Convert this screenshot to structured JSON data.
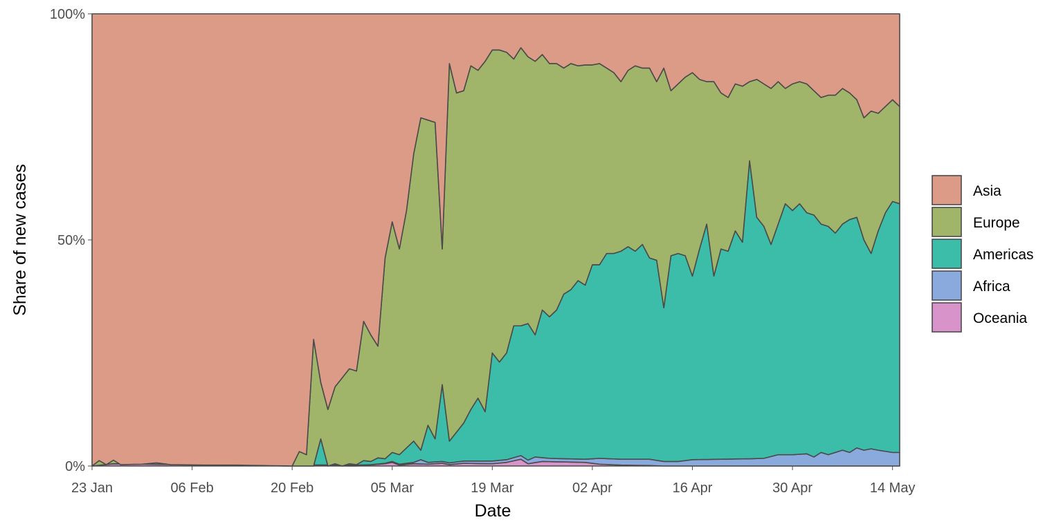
{
  "chart_data": {
    "type": "area",
    "stacked": true,
    "normalized": true,
    "xlabel": "Date",
    "ylabel": "Share of new cases",
    "x_start": "2020-01-23",
    "x_end": "2020-05-15",
    "x_ticks": [
      {
        "date": "2020-01-23",
        "label": "23 Jan"
      },
      {
        "date": "2020-02-06",
        "label": "06 Feb"
      },
      {
        "date": "2020-02-20",
        "label": "20 Feb"
      },
      {
        "date": "2020-03-05",
        "label": "05 Mar"
      },
      {
        "date": "2020-03-19",
        "label": "19 Mar"
      },
      {
        "date": "2020-04-02",
        "label": "02 Apr"
      },
      {
        "date": "2020-04-16",
        "label": "16 Apr"
      },
      {
        "date": "2020-04-30",
        "label": "30 Apr"
      },
      {
        "date": "2020-05-14",
        "label": "14 May"
      }
    ],
    "y_ticks": [
      {
        "value": 0,
        "label": "0%"
      },
      {
        "value": 0.5,
        "label": "50%"
      },
      {
        "value": 1,
        "label": "100%"
      }
    ],
    "ylim": [
      0,
      1
    ],
    "grid": true,
    "legend_position": "right",
    "legend_order": [
      "Asia",
      "Europe",
      "Americas",
      "Africa",
      "Oceania"
    ],
    "stack_order_bottom_to_top": [
      "Oceania",
      "Africa",
      "Americas",
      "Europe",
      "Asia"
    ],
    "colors": {
      "Asia": "#db9b86",
      "Europe": "#a0b46a",
      "Americas": "#3cbdaa",
      "Africa": "#8aa9dc",
      "Oceania": "#d893cb"
    },
    "cumulative_top_boundaries": {
      "Oceania": [
        [
          "2020-01-23",
          0
        ],
        [
          "2020-01-26",
          0.005
        ],
        [
          "2020-02-29",
          0
        ],
        [
          "2020-03-04",
          0.005
        ],
        [
          "2020-03-05",
          0.008
        ],
        [
          "2020-03-06",
          0.002
        ],
        [
          "2020-03-08",
          0.005
        ],
        [
          "2020-03-10",
          0.004
        ],
        [
          "2020-03-12",
          0.006
        ],
        [
          "2020-03-13",
          0.003
        ],
        [
          "2020-03-15",
          0.006
        ],
        [
          "2020-03-19",
          0.005
        ],
        [
          "2020-03-21",
          0.008
        ],
        [
          "2020-03-23",
          0.015
        ],
        [
          "2020-03-24",
          0.005
        ],
        [
          "2020-03-26",
          0.01
        ],
        [
          "2020-04-01",
          0.008
        ],
        [
          "2020-04-03",
          0.004
        ],
        [
          "2020-04-06",
          0.002
        ],
        [
          "2020-04-10",
          0.001
        ],
        [
          "2020-04-12",
          0
        ],
        [
          "2020-05-15",
          0
        ]
      ],
      "Africa": [
        [
          "2020-01-23",
          0
        ],
        [
          "2020-01-26",
          0.005
        ],
        [
          "2020-02-29",
          0.002
        ],
        [
          "2020-03-02",
          0.003
        ],
        [
          "2020-03-04",
          0.006
        ],
        [
          "2020-03-05",
          0.01
        ],
        [
          "2020-03-06",
          0.004
        ],
        [
          "2020-03-08",
          0.008
        ],
        [
          "2020-03-09",
          0.014
        ],
        [
          "2020-03-10",
          0.008
        ],
        [
          "2020-03-12",
          0.01
        ],
        [
          "2020-03-13",
          0.007
        ],
        [
          "2020-03-15",
          0.011
        ],
        [
          "2020-03-19",
          0.011
        ],
        [
          "2020-03-21",
          0.014
        ],
        [
          "2020-03-23",
          0.023
        ],
        [
          "2020-03-24",
          0.013
        ],
        [
          "2020-03-25",
          0.02
        ],
        [
          "2020-03-27",
          0.017
        ],
        [
          "2020-04-01",
          0.015
        ],
        [
          "2020-04-03",
          0.017
        ],
        [
          "2020-04-06",
          0.015
        ],
        [
          "2020-04-10",
          0.015
        ],
        [
          "2020-04-12",
          0.01
        ],
        [
          "2020-04-14",
          0.01
        ],
        [
          "2020-04-16",
          0.014
        ],
        [
          "2020-04-20",
          0.015
        ],
        [
          "2020-04-24",
          0.016
        ],
        [
          "2020-04-26",
          0.017
        ],
        [
          "2020-04-28",
          0.025
        ],
        [
          "2020-04-30",
          0.025
        ],
        [
          "2020-05-02",
          0.027
        ],
        [
          "2020-05-03",
          0.02
        ],
        [
          "2020-05-04",
          0.03
        ],
        [
          "2020-05-05",
          0.025
        ],
        [
          "2020-05-07",
          0.035
        ],
        [
          "2020-05-08",
          0.03
        ],
        [
          "2020-05-09",
          0.04
        ],
        [
          "2020-05-10",
          0.035
        ],
        [
          "2020-05-11",
          0.038
        ],
        [
          "2020-05-12",
          0.035
        ],
        [
          "2020-05-14",
          0.03
        ],
        [
          "2020-05-15",
          0.03
        ]
      ],
      "Americas": [
        [
          "2020-01-23",
          0
        ],
        [
          "2020-01-26",
          0.005
        ],
        [
          "2020-02-20",
          0
        ],
        [
          "2020-02-23",
          0
        ],
        [
          "2020-02-24",
          0.06
        ],
        [
          "2020-02-25",
          0
        ],
        [
          "2020-02-26",
          0.005
        ],
        [
          "2020-02-27",
          0
        ],
        [
          "2020-02-28",
          0.005
        ],
        [
          "2020-02-29",
          0.003
        ],
        [
          "2020-03-01",
          0.012
        ],
        [
          "2020-03-02",
          0.01
        ],
        [
          "2020-03-03",
          0.018
        ],
        [
          "2020-03-04",
          0.016
        ],
        [
          "2020-03-05",
          0.03
        ],
        [
          "2020-03-06",
          0.025
        ],
        [
          "2020-03-08",
          0.055
        ],
        [
          "2020-03-09",
          0.035
        ],
        [
          "2020-03-10",
          0.09
        ],
        [
          "2020-03-11",
          0.06
        ],
        [
          "2020-03-12",
          0.18
        ],
        [
          "2020-03-13",
          0.055
        ],
        [
          "2020-03-14",
          0.075
        ],
        [
          "2020-03-15",
          0.095
        ],
        [
          "2020-03-16",
          0.125
        ],
        [
          "2020-03-17",
          0.15
        ],
        [
          "2020-03-18",
          0.12
        ],
        [
          "2020-03-19",
          0.25
        ],
        [
          "2020-03-20",
          0.23
        ],
        [
          "2020-03-21",
          0.25
        ],
        [
          "2020-03-22",
          0.31
        ],
        [
          "2020-03-23",
          0.31
        ],
        [
          "2020-03-24",
          0.315
        ],
        [
          "2020-03-25",
          0.29
        ],
        [
          "2020-03-26",
          0.345
        ],
        [
          "2020-03-27",
          0.33
        ],
        [
          "2020-03-28",
          0.345
        ],
        [
          "2020-03-29",
          0.38
        ],
        [
          "2020-03-30",
          0.39
        ],
        [
          "2020-03-31",
          0.41
        ],
        [
          "2020-04-01",
          0.4
        ],
        [
          "2020-04-02",
          0.445
        ],
        [
          "2020-04-03",
          0.445
        ],
        [
          "2020-04-04",
          0.47
        ],
        [
          "2020-04-05",
          0.47
        ],
        [
          "2020-04-06",
          0.475
        ],
        [
          "2020-04-07",
          0.485
        ],
        [
          "2020-04-08",
          0.475
        ],
        [
          "2020-04-09",
          0.49
        ],
        [
          "2020-04-10",
          0.46
        ],
        [
          "2020-04-11",
          0.455
        ],
        [
          "2020-04-12",
          0.35
        ],
        [
          "2020-04-13",
          0.465
        ],
        [
          "2020-04-14",
          0.47
        ],
        [
          "2020-04-15",
          0.465
        ],
        [
          "2020-04-16",
          0.42
        ],
        [
          "2020-04-17",
          0.48
        ],
        [
          "2020-04-18",
          0.535
        ],
        [
          "2020-04-19",
          0.42
        ],
        [
          "2020-04-20",
          0.48
        ],
        [
          "2020-04-21",
          0.475
        ],
        [
          "2020-04-22",
          0.52
        ],
        [
          "2020-04-23",
          0.495
        ],
        [
          "2020-04-24",
          0.675
        ],
        [
          "2020-04-25",
          0.55
        ],
        [
          "2020-04-26",
          0.53
        ],
        [
          "2020-04-27",
          0.49
        ],
        [
          "2020-04-28",
          0.535
        ],
        [
          "2020-04-29",
          0.58
        ],
        [
          "2020-04-30",
          0.565
        ],
        [
          "2020-05-01",
          0.58
        ],
        [
          "2020-05-02",
          0.56
        ],
        [
          "2020-05-03",
          0.555
        ],
        [
          "2020-05-04",
          0.535
        ],
        [
          "2020-05-05",
          0.53
        ],
        [
          "2020-05-06",
          0.515
        ],
        [
          "2020-05-07",
          0.535
        ],
        [
          "2020-05-08",
          0.545
        ],
        [
          "2020-05-09",
          0.55
        ],
        [
          "2020-05-10",
          0.5
        ],
        [
          "2020-05-11",
          0.47
        ],
        [
          "2020-05-12",
          0.52
        ],
        [
          "2020-05-13",
          0.56
        ],
        [
          "2020-05-14",
          0.585
        ],
        [
          "2020-05-15",
          0.58
        ]
      ],
      "Europe": [
        [
          "2020-01-23",
          0
        ],
        [
          "2020-01-24",
          0.012
        ],
        [
          "2020-01-25",
          0.003
        ],
        [
          "2020-01-26",
          0.013
        ],
        [
          "2020-01-27",
          0.003
        ],
        [
          "2020-01-30",
          0.004
        ],
        [
          "2020-02-01",
          0.007
        ],
        [
          "2020-02-03",
          0.003
        ],
        [
          "2020-02-08",
          0.002
        ],
        [
          "2020-02-12",
          0.002
        ],
        [
          "2020-02-20",
          0
        ],
        [
          "2020-02-21",
          0.032
        ],
        [
          "2020-02-22",
          0.025
        ],
        [
          "2020-02-23",
          0.28
        ],
        [
          "2020-02-24",
          0.185
        ],
        [
          "2020-02-25",
          0.125
        ],
        [
          "2020-02-26",
          0.175
        ],
        [
          "2020-02-27",
          0.195
        ],
        [
          "2020-02-28",
          0.215
        ],
        [
          "2020-02-29",
          0.21
        ],
        [
          "2020-03-01",
          0.32
        ],
        [
          "2020-03-02",
          0.29
        ],
        [
          "2020-03-03",
          0.265
        ],
        [
          "2020-03-04",
          0.46
        ],
        [
          "2020-03-05",
          0.54
        ],
        [
          "2020-03-06",
          0.48
        ],
        [
          "2020-03-07",
          0.565
        ],
        [
          "2020-03-08",
          0.69
        ],
        [
          "2020-03-09",
          0.77
        ],
        [
          "2020-03-10",
          0.765
        ],
        [
          "2020-03-11",
          0.76
        ],
        [
          "2020-03-12",
          0.48
        ],
        [
          "2020-03-13",
          0.89
        ],
        [
          "2020-03-14",
          0.825
        ],
        [
          "2020-03-15",
          0.83
        ],
        [
          "2020-03-16",
          0.885
        ],
        [
          "2020-03-17",
          0.875
        ],
        [
          "2020-03-18",
          0.895
        ],
        [
          "2020-03-19",
          0.92
        ],
        [
          "2020-03-20",
          0.92
        ],
        [
          "2020-03-21",
          0.915
        ],
        [
          "2020-03-22",
          0.9
        ],
        [
          "2020-03-23",
          0.925
        ],
        [
          "2020-03-24",
          0.905
        ],
        [
          "2020-03-25",
          0.895
        ],
        [
          "2020-03-26",
          0.91
        ],
        [
          "2020-03-27",
          0.89
        ],
        [
          "2020-03-28",
          0.89
        ],
        [
          "2020-03-29",
          0.88
        ],
        [
          "2020-03-30",
          0.89
        ],
        [
          "2020-03-31",
          0.885
        ],
        [
          "2020-04-01",
          0.887
        ],
        [
          "2020-04-02",
          0.887
        ],
        [
          "2020-04-03",
          0.89
        ],
        [
          "2020-04-04",
          0.88
        ],
        [
          "2020-04-05",
          0.87
        ],
        [
          "2020-04-06",
          0.85
        ],
        [
          "2020-04-07",
          0.875
        ],
        [
          "2020-04-08",
          0.885
        ],
        [
          "2020-04-09",
          0.88
        ],
        [
          "2020-04-10",
          0.88
        ],
        [
          "2020-04-11",
          0.85
        ],
        [
          "2020-04-12",
          0.88
        ],
        [
          "2020-04-13",
          0.83
        ],
        [
          "2020-04-14",
          0.845
        ],
        [
          "2020-04-15",
          0.86
        ],
        [
          "2020-04-16",
          0.87
        ],
        [
          "2020-04-17",
          0.855
        ],
        [
          "2020-04-18",
          0.85
        ],
        [
          "2020-04-19",
          0.85
        ],
        [
          "2020-04-20",
          0.825
        ],
        [
          "2020-04-21",
          0.815
        ],
        [
          "2020-04-22",
          0.845
        ],
        [
          "2020-04-23",
          0.84
        ],
        [
          "2020-04-24",
          0.85
        ],
        [
          "2020-04-25",
          0.855
        ],
        [
          "2020-04-26",
          0.845
        ],
        [
          "2020-04-27",
          0.835
        ],
        [
          "2020-04-28",
          0.85
        ],
        [
          "2020-04-29",
          0.835
        ],
        [
          "2020-04-30",
          0.845
        ],
        [
          "2020-05-01",
          0.85
        ],
        [
          "2020-05-02",
          0.845
        ],
        [
          "2020-05-03",
          0.83
        ],
        [
          "2020-05-04",
          0.815
        ],
        [
          "2020-05-05",
          0.82
        ],
        [
          "2020-05-06",
          0.82
        ],
        [
          "2020-05-07",
          0.835
        ],
        [
          "2020-05-08",
          0.825
        ],
        [
          "2020-05-09",
          0.81
        ],
        [
          "2020-05-10",
          0.77
        ],
        [
          "2020-05-11",
          0.785
        ],
        [
          "2020-05-12",
          0.78
        ],
        [
          "2020-05-13",
          0.795
        ],
        [
          "2020-05-14",
          0.81
        ],
        [
          "2020-05-15",
          0.795
        ]
      ],
      "Asia": [
        [
          "2020-01-23",
          1
        ],
        [
          "2020-05-15",
          1
        ]
      ]
    }
  },
  "legend": {
    "items": [
      {
        "name": "Asia",
        "color": "#db9b86"
      },
      {
        "name": "Europe",
        "color": "#a0b46a"
      },
      {
        "name": "Americas",
        "color": "#3cbdaa"
      },
      {
        "name": "Africa",
        "color": "#8aa9dc"
      },
      {
        "name": "Oceania",
        "color": "#d893cb"
      }
    ]
  }
}
